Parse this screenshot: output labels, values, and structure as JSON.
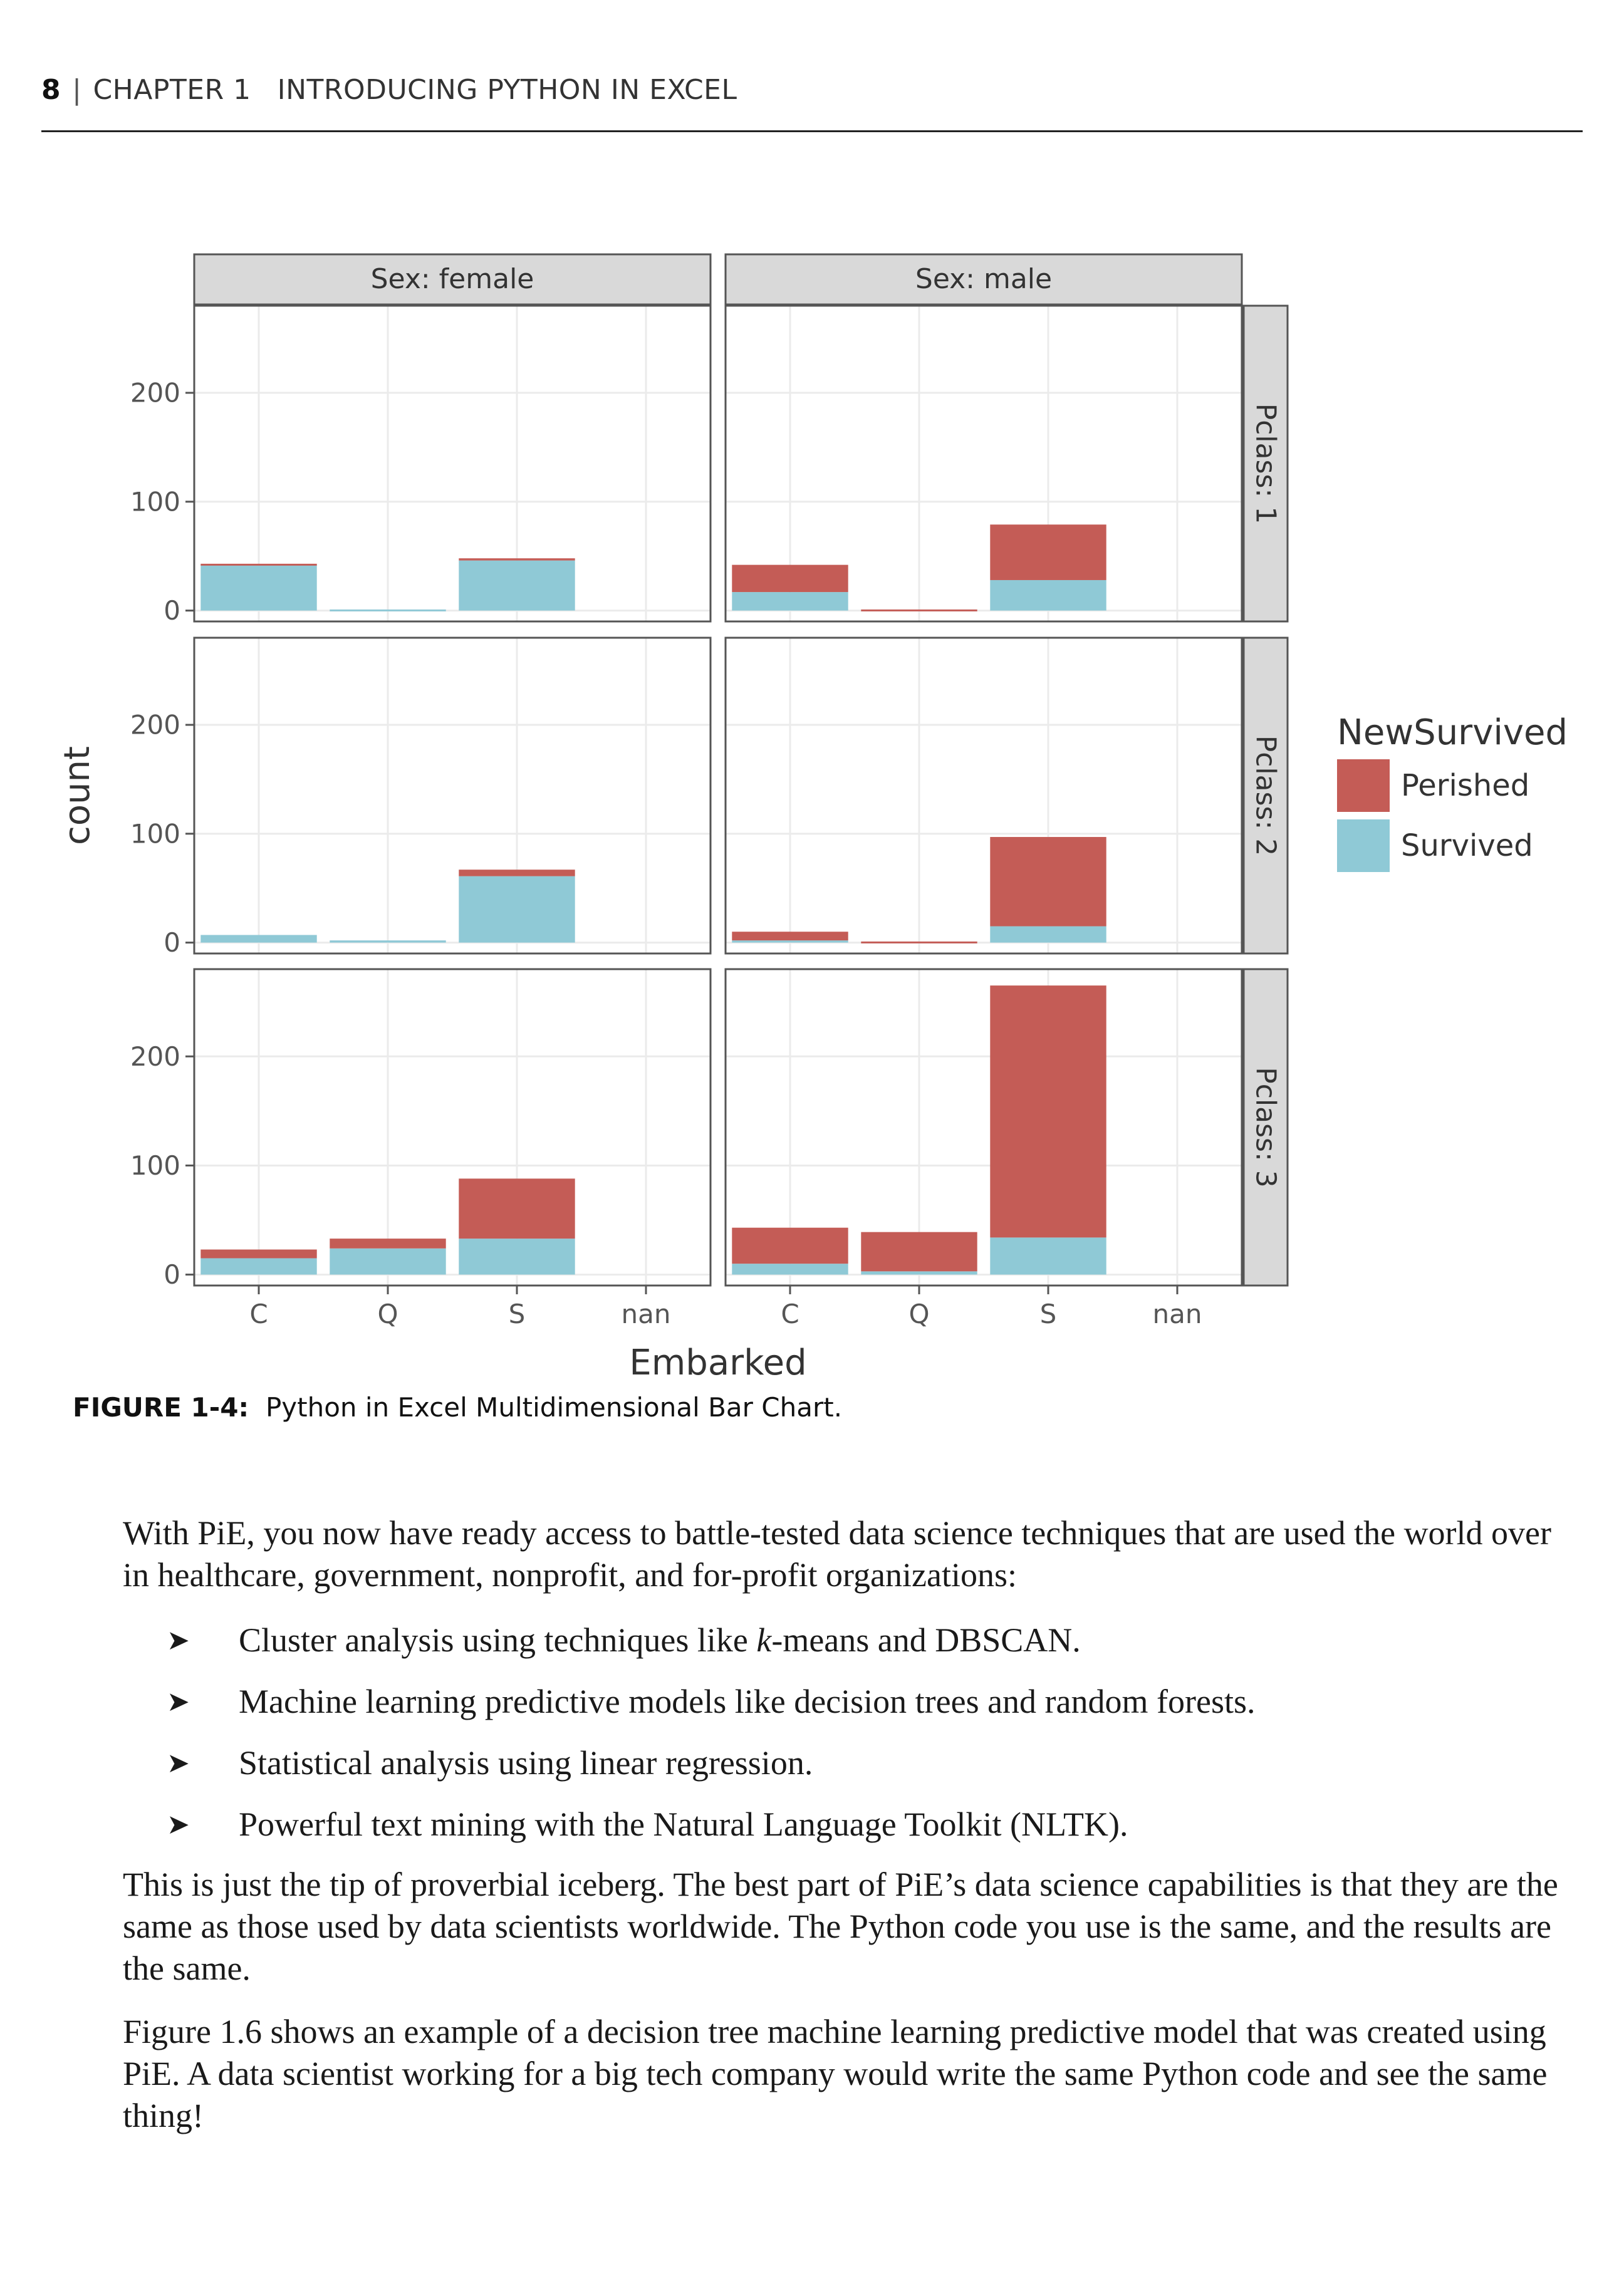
{
  "running_head": {
    "page_number": "8",
    "separator": "|",
    "chapter": "CHAPTER 1",
    "chapter_title": "INTRODUCING PYTHON IN EXCEL"
  },
  "figure": {
    "caption_label": "FIGURE 1-4:",
    "caption_text": "Python in Excel Multidimensional Bar Chart."
  },
  "chart_data": {
    "type": "bar",
    "stacked": true,
    "facet_columns": [
      "Sex: female",
      "Sex: male"
    ],
    "facet_rows": [
      "Pclass: 1",
      "Pclass: 2",
      "Pclass: 3"
    ],
    "categories": [
      "C",
      "Q",
      "S",
      "nan"
    ],
    "xlabel": "Embarked",
    "ylabel": "count",
    "yticks": [
      0,
      100,
      200
    ],
    "ylim": [
      -10,
      280
    ],
    "legend": {
      "title": "NewSurvived",
      "position": "right",
      "entries": [
        {
          "name": "Perished",
          "color": "#c45c56"
        },
        {
          "name": "Survived",
          "color": "#8fc9d6"
        }
      ]
    },
    "panels": [
      {
        "sex": "Sex: female",
        "pclass": "Pclass: 1",
        "survived": [
          42,
          1,
          46,
          0
        ],
        "perished": [
          1,
          0,
          2,
          0
        ]
      },
      {
        "sex": "Sex: male",
        "pclass": "Pclass: 1",
        "survived": [
          17,
          0,
          28,
          0
        ],
        "perished": [
          25,
          1,
          51,
          0
        ]
      },
      {
        "sex": "Sex: female",
        "pclass": "Pclass: 2",
        "survived": [
          7,
          2,
          61,
          0
        ],
        "perished": [
          0,
          0,
          6,
          0
        ]
      },
      {
        "sex": "Sex: male",
        "pclass": "Pclass: 2",
        "survived": [
          2,
          0,
          15,
          0
        ],
        "perished": [
          8,
          1,
          82,
          0
        ]
      },
      {
        "sex": "Sex: female",
        "pclass": "Pclass: 3",
        "survived": [
          15,
          24,
          33,
          0
        ],
        "perished": [
          8,
          9,
          55,
          0
        ]
      },
      {
        "sex": "Sex: male",
        "pclass": "Pclass: 3",
        "survived": [
          10,
          3,
          34,
          0
        ],
        "perished": [
          33,
          36,
          231,
          0
        ]
      }
    ]
  },
  "body": {
    "paragraph_1": "With PiE, you now have ready access to battle-tested data science techniques that are used the world over in healthcare, government, nonprofit, and for-profit organizations:",
    "bullet_marker": "➤",
    "bullets": [
      {
        "before": "Cluster analysis using techniques like ",
        "italic": "k",
        "after": "-means and DBSCAN."
      },
      {
        "before": "Machine learning predictive models like decision trees and random forests.",
        "italic": "",
        "after": ""
      },
      {
        "before": "Statistical analysis using linear regression.",
        "italic": "",
        "after": ""
      },
      {
        "before": "Powerful text mining with the Natural Language Toolkit (NLTK).",
        "italic": "",
        "after": ""
      }
    ],
    "paragraph_2": "This is just the tip of proverbial iceberg. The best part of PiE’s data science capabilities is that they are the same as those used by data scientists worldwide. The Python code you use is the same, and the results are the same.",
    "paragraph_3": "Figure 1.6 shows an example of a decision tree machine learning predictive model that was created using PiE. A data scientist working for a big tech company would write the same Python code and see the same thing!"
  }
}
